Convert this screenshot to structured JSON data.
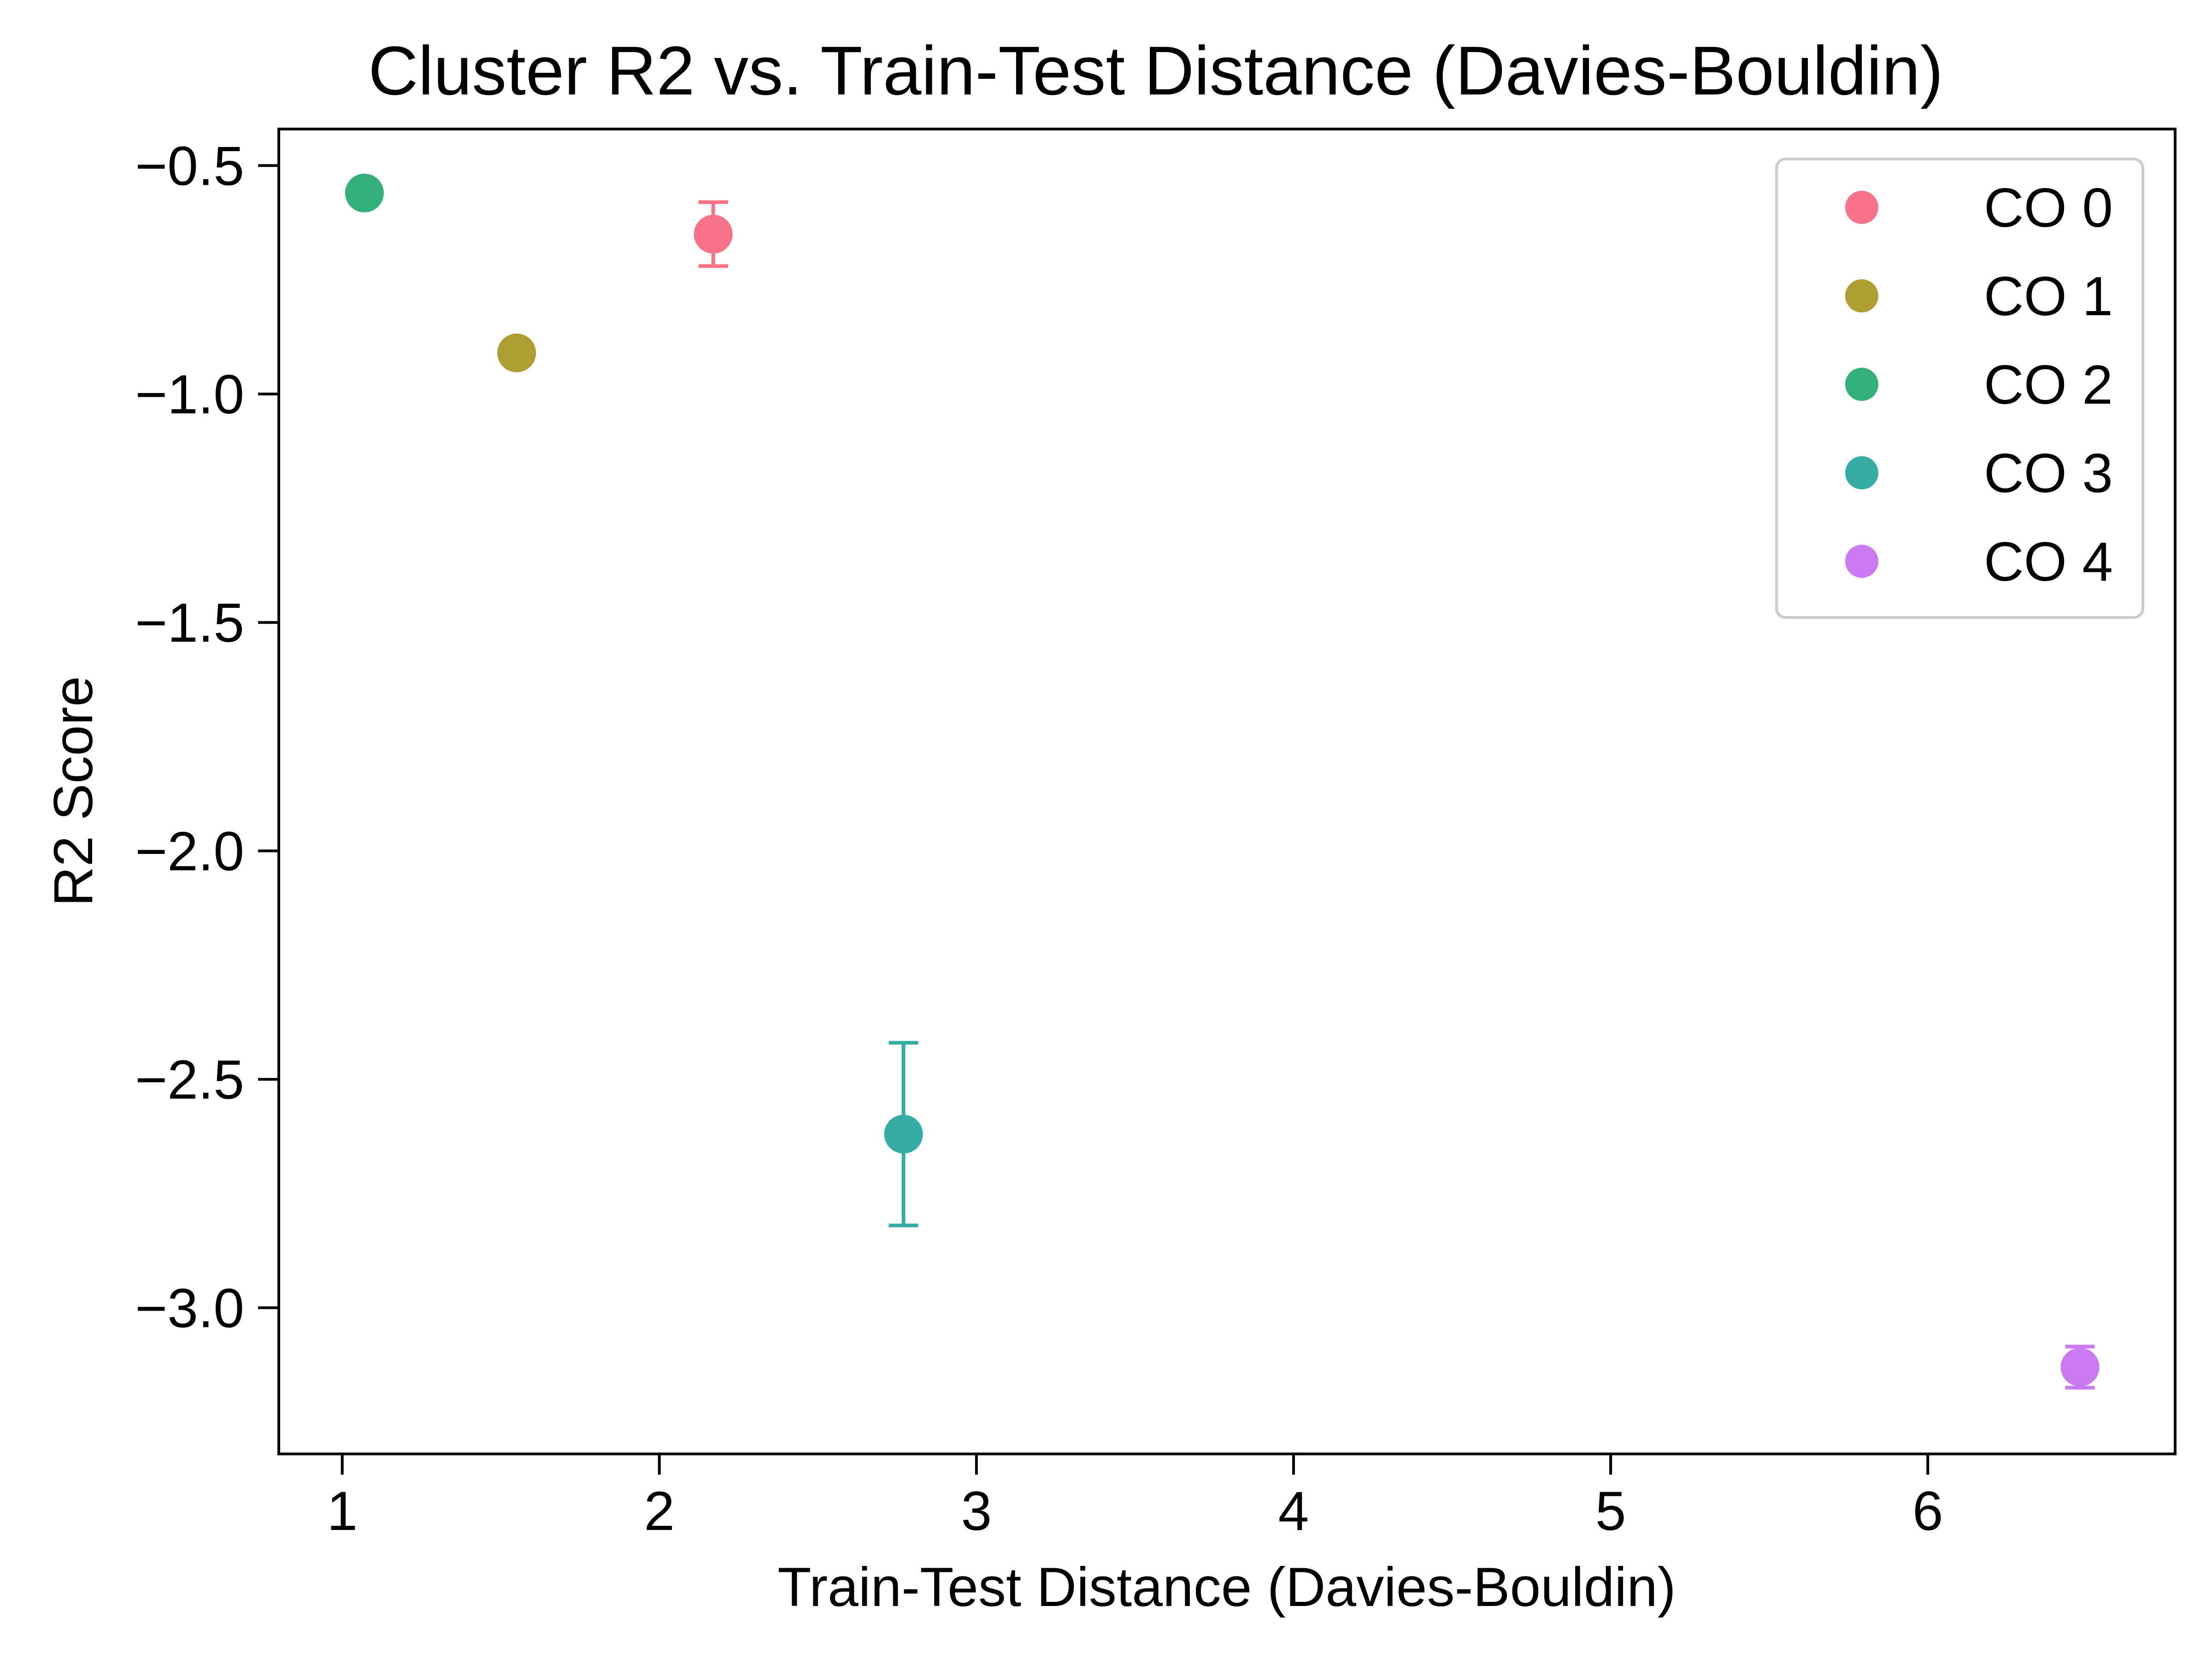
{
  "chart_data": {
    "type": "scatter",
    "title": "Cluster R2 vs. Train-Test Distance (Davies-Bouldin)",
    "xlabel": "Train-Test Distance (Davies-Bouldin)",
    "ylabel": "R2 Score",
    "xlim": [
      0.8,
      6.78
    ],
    "ylim": [
      -3.32,
      -0.42
    ],
    "xticks": [
      1,
      2,
      3,
      4,
      5,
      6
    ],
    "xtick_labels": [
      "1",
      "2",
      "3",
      "4",
      "5",
      "6"
    ],
    "yticks": [
      -0.5,
      -1.0,
      -1.5,
      -2.0,
      -2.5,
      -3.0
    ],
    "ytick_labels": [
      "−0.5",
      "−1.0",
      "−1.5",
      "−2.0",
      "−2.5",
      "−3.0"
    ],
    "grid": false,
    "legend_position": "top-right",
    "series": [
      {
        "name": "CO 0",
        "color": "#f77189",
        "x": 2.17,
        "y": -0.65,
        "err": 0.07
      },
      {
        "name": "CO 1",
        "color": "#ae9d31",
        "x": 1.55,
        "y": -0.91,
        "err": 0.0
      },
      {
        "name": "CO 2",
        "color": "#33b07a",
        "x": 1.07,
        "y": -0.56,
        "err": 0.0
      },
      {
        "name": "CO 3",
        "color": "#36ada4",
        "x": 2.77,
        "y": -2.62,
        "err": 0.2
      },
      {
        "name": "CO 4",
        "color": "#cc7af4",
        "x": 6.48,
        "y": -3.13,
        "err": 0.045
      }
    ]
  }
}
